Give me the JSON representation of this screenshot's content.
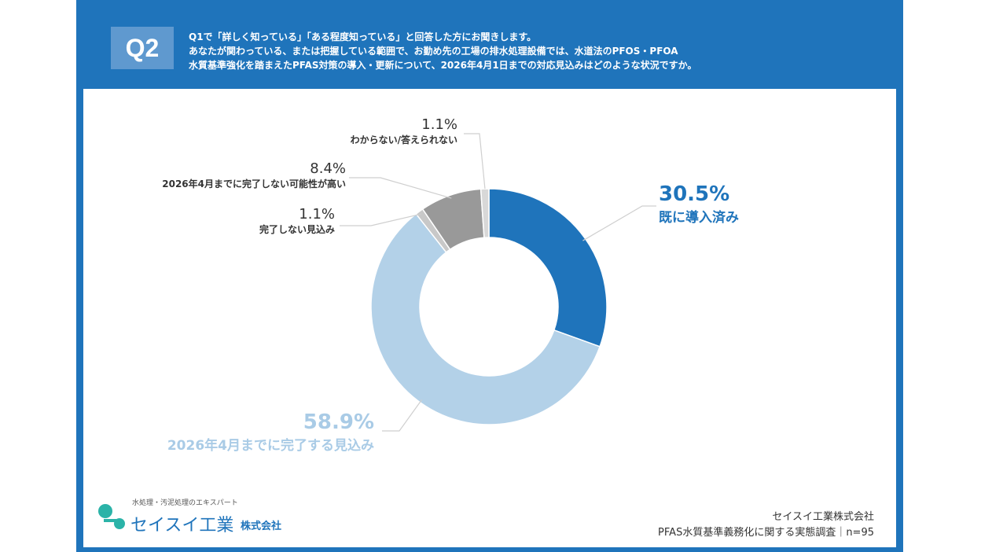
{
  "header": {
    "badge": "Q2",
    "lines": [
      "Q1で「詳しく知っている」「ある程度知っている」と回答した方にお聞きします。",
      "あなたが関わっている、または把握している範囲で、お勤め先の工場の排水処理設備では、水道法のPFOS・PFOA",
      "水質基準強化を踏まえたPFAS対策の導入・更新について、2026年4月1日までの対応見込みはどのような状況ですか。"
    ]
  },
  "chart_data": {
    "type": "pie",
    "donut": true,
    "slices": [
      {
        "label": "既に導入済み",
        "value": 30.5,
        "display": "30.5%",
        "color": "#1f74bb"
      },
      {
        "label": "2026年4月までに完了する見込み",
        "value": 58.9,
        "display": "58.9%",
        "color": "#b3d1e8"
      },
      {
        "label": "完了しない見込み",
        "value": 1.1,
        "display": "1.1%",
        "color": "#c8c8c8"
      },
      {
        "label": "2026年4月までに完了しない可能性が高い",
        "value": 8.4,
        "display": "8.4%",
        "color": "#999999"
      },
      {
        "label": "わからない/答えられない",
        "value": 1.1,
        "display": "1.1%",
        "color": "#d8d8d8"
      }
    ],
    "start_angle_deg": 0,
    "direction": "clockwise"
  },
  "footer": {
    "logo_tagline": "水処理・汚泥処理のエキスパート",
    "logo_name": "セイスイ工業",
    "logo_suffix": "株式会社",
    "credit_company": "セイスイ工業株式会社",
    "credit_survey": "PFAS水質基準義務化に関する実態調査｜n=95"
  }
}
